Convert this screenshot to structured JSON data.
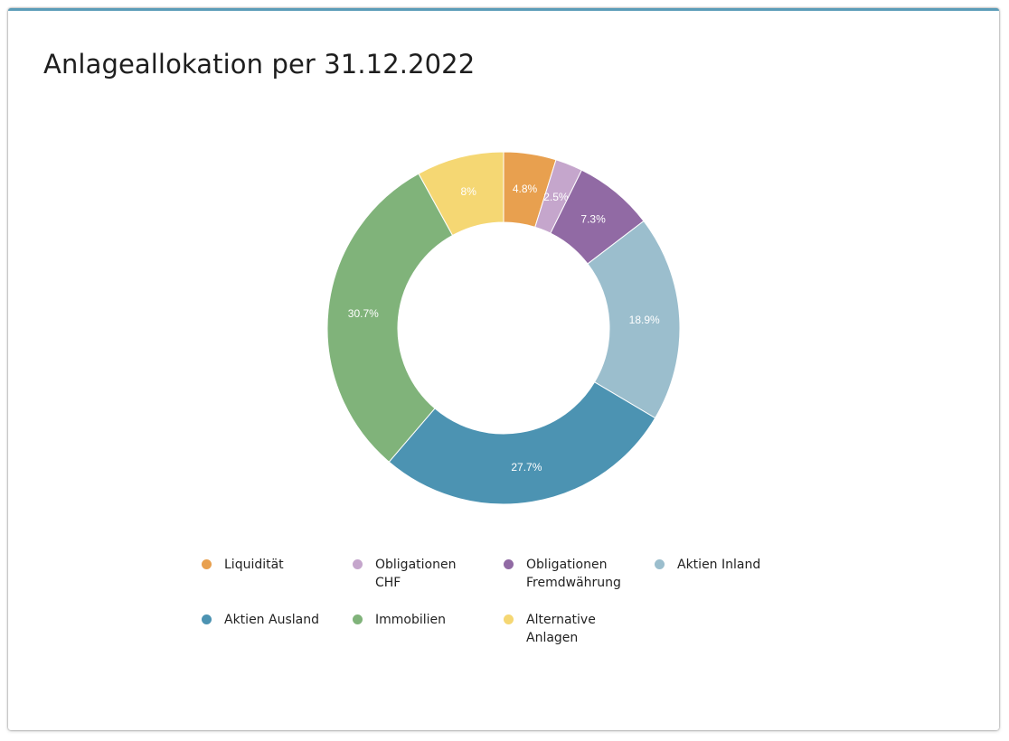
{
  "title": "Anlageallokation per 31.12.2022",
  "colors": {
    "accent_border": "#5b9cb8"
  },
  "chart_data": {
    "type": "pie",
    "variant": "donut",
    "title": "Anlageallokation per 31.12.2022",
    "unit": "%",
    "legend_position": "bottom",
    "series": [
      {
        "name": "Liquidität",
        "value": 4.8,
        "label": "4.8%",
        "color": "#e8a04f"
      },
      {
        "name": "Obligationen CHF",
        "value": 2.5,
        "label": "2.5%",
        "color": "#c5a6cc"
      },
      {
        "name": "Obligationen Fremdwährung",
        "value": 7.3,
        "label": "7.3%",
        "color": "#916aa4"
      },
      {
        "name": "Aktien Inland",
        "value": 18.9,
        "label": "18.9%",
        "color": "#9bbecd"
      },
      {
        "name": "Aktien Ausland",
        "value": 27.7,
        "label": "27.7%",
        "color": "#4c93b2"
      },
      {
        "name": "Immobilien",
        "value": 30.7,
        "label": "30.7%",
        "color": "#80b37a"
      },
      {
        "name": "Alternative Anlagen",
        "value": 8,
        "label": "8%",
        "color": "#f5d773"
      }
    ]
  }
}
